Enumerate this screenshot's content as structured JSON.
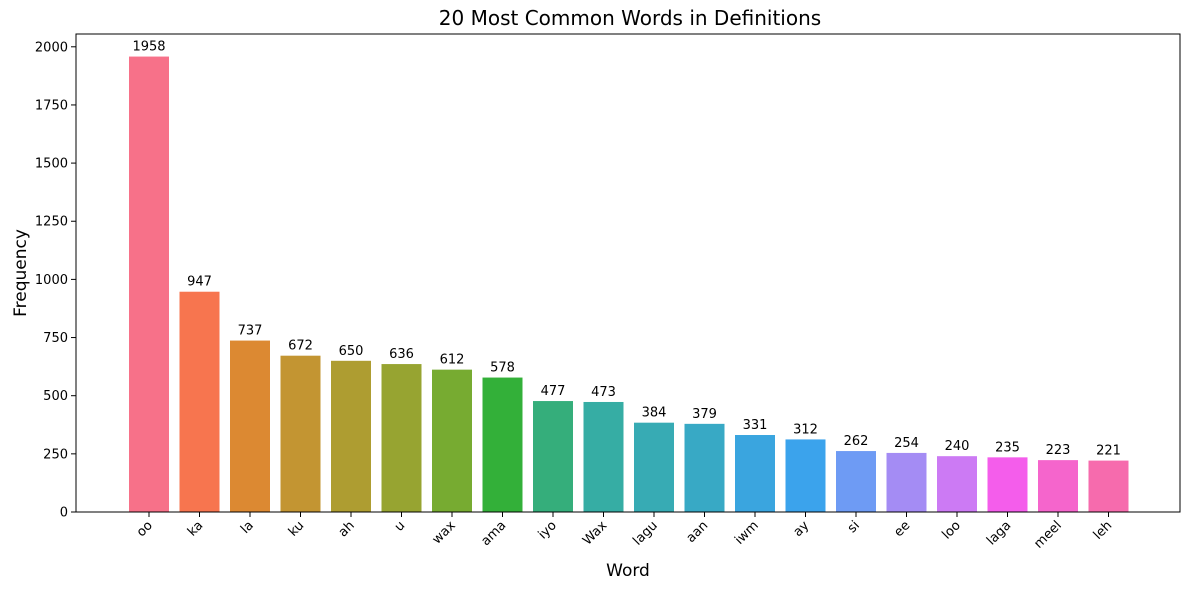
{
  "chart_data": {
    "type": "bar",
    "title": "20 Most Common Words in Definitions",
    "xlabel": "Word",
    "ylabel": "Frequency",
    "ylim": [
      0,
      2055
    ],
    "yticks": [
      0,
      250,
      500,
      750,
      1000,
      1250,
      1500,
      1750,
      2000
    ],
    "grid": false,
    "categories": [
      "oo",
      "ka",
      "la",
      "ku",
      "ah",
      "u",
      "wax",
      "ama",
      "iyo",
      "Wax",
      "lagu",
      "aan",
      "iwm",
      "ay",
      "si",
      "ee",
      "loo",
      "laga",
      "meel",
      "leh"
    ],
    "values": [
      1958,
      947,
      737,
      672,
      650,
      636,
      612,
      578,
      477,
      473,
      384,
      379,
      331,
      312,
      262,
      254,
      240,
      235,
      223,
      221
    ],
    "colors": [
      "#f77189",
      "#f7754f",
      "#dc8932",
      "#c39532",
      "#ae9d31",
      "#97a431",
      "#77ab31",
      "#33b039",
      "#35ae7b",
      "#36ada4",
      "#37abb4",
      "#38a9c5",
      "#3aa5df",
      "#3ba3ec",
      "#6e9bf4",
      "#a48cf4",
      "#cc7af4",
      "#f45deb",
      "#f565cc",
      "#f66bad"
    ]
  }
}
